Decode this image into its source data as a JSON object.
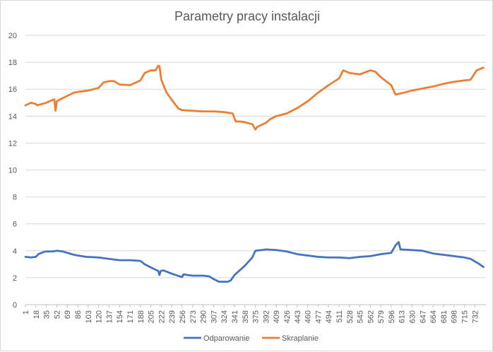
{
  "chart_data": {
    "type": "line",
    "title": "Parametry pracy instalacji",
    "xlabel": "",
    "ylabel": "",
    "ylim": [
      0,
      20
    ],
    "y_ticks": [
      0,
      2,
      4,
      6,
      8,
      10,
      12,
      14,
      16,
      18,
      20
    ],
    "x_ticks": [
      1,
      18,
      35,
      52,
      69,
      86,
      103,
      120,
      137,
      154,
      171,
      188,
      205,
      222,
      239,
      256,
      273,
      290,
      307,
      324,
      341,
      358,
      375,
      392,
      409,
      426,
      443,
      460,
      477,
      494,
      511,
      528,
      545,
      562,
      579,
      596,
      613,
      630,
      647,
      664,
      681,
      698,
      715,
      732
    ],
    "xlim": [
      1,
      750
    ],
    "grid": true,
    "legend_position": "bottom",
    "colors": {
      "Odparowanie": "#4472C4",
      "Skraplanie": "#ED7D31"
    },
    "series": [
      {
        "name": "Odparowanie",
        "points": [
          [
            1,
            3.55
          ],
          [
            10,
            3.5
          ],
          [
            18,
            3.55
          ],
          [
            22,
            3.75
          ],
          [
            30,
            3.9
          ],
          [
            35,
            3.95
          ],
          [
            45,
            3.95
          ],
          [
            52,
            4.0
          ],
          [
            62,
            3.95
          ],
          [
            69,
            3.85
          ],
          [
            80,
            3.7
          ],
          [
            86,
            3.65
          ],
          [
            100,
            3.55
          ],
          [
            120,
            3.5
          ],
          [
            137,
            3.4
          ],
          [
            154,
            3.3
          ],
          [
            171,
            3.3
          ],
          [
            188,
            3.25
          ],
          [
            195,
            3.0
          ],
          [
            210,
            2.65
          ],
          [
            217,
            2.5
          ],
          [
            219,
            2.2
          ],
          [
            221,
            2.5
          ],
          [
            225,
            2.55
          ],
          [
            239,
            2.3
          ],
          [
            252,
            2.1
          ],
          [
            256,
            2.05
          ],
          [
            258,
            2.25
          ],
          [
            265,
            2.2
          ],
          [
            273,
            2.15
          ],
          [
            290,
            2.15
          ],
          [
            300,
            2.1
          ],
          [
            307,
            1.9
          ],
          [
            316,
            1.7
          ],
          [
            330,
            1.7
          ],
          [
            335,
            1.8
          ],
          [
            341,
            2.2
          ],
          [
            358,
            2.9
          ],
          [
            370,
            3.5
          ],
          [
            375,
            4.0
          ],
          [
            385,
            4.05
          ],
          [
            392,
            4.1
          ],
          [
            409,
            4.05
          ],
          [
            426,
            3.95
          ],
          [
            443,
            3.75
          ],
          [
            460,
            3.65
          ],
          [
            477,
            3.55
          ],
          [
            494,
            3.5
          ],
          [
            511,
            3.5
          ],
          [
            528,
            3.45
          ],
          [
            545,
            3.55
          ],
          [
            562,
            3.6
          ],
          [
            579,
            3.75
          ],
          [
            596,
            3.85
          ],
          [
            603,
            4.4
          ],
          [
            608,
            4.65
          ],
          [
            611,
            4.1
          ],
          [
            630,
            4.05
          ],
          [
            647,
            4.0
          ],
          [
            664,
            3.8
          ],
          [
            681,
            3.7
          ],
          [
            698,
            3.6
          ],
          [
            715,
            3.5
          ],
          [
            725,
            3.4
          ],
          [
            738,
            3.05
          ],
          [
            746,
            2.8
          ]
        ]
      },
      {
        "name": "Skraplanie",
        "points": [
          [
            1,
            14.8
          ],
          [
            10,
            15.0
          ],
          [
            18,
            14.9
          ],
          [
            20,
            14.8
          ],
          [
            35,
            15.0
          ],
          [
            45,
            15.2
          ],
          [
            48,
            15.25
          ],
          [
            50,
            14.4
          ],
          [
            52,
            15.1
          ],
          [
            60,
            15.3
          ],
          [
            69,
            15.5
          ],
          [
            80,
            15.75
          ],
          [
            86,
            15.8
          ],
          [
            103,
            15.9
          ],
          [
            120,
            16.1
          ],
          [
            128,
            16.5
          ],
          [
            137,
            16.6
          ],
          [
            145,
            16.6
          ],
          [
            154,
            16.35
          ],
          [
            171,
            16.3
          ],
          [
            188,
            16.65
          ],
          [
            195,
            17.2
          ],
          [
            205,
            17.4
          ],
          [
            213,
            17.4
          ],
          [
            217,
            17.75
          ],
          [
            219,
            17.7
          ],
          [
            222,
            16.7
          ],
          [
            230,
            15.8
          ],
          [
            239,
            15.2
          ],
          [
            250,
            14.55
          ],
          [
            256,
            14.45
          ],
          [
            273,
            14.4
          ],
          [
            290,
            14.35
          ],
          [
            307,
            14.35
          ],
          [
            324,
            14.3
          ],
          [
            338,
            14.2
          ],
          [
            343,
            13.6
          ],
          [
            350,
            13.6
          ],
          [
            358,
            13.55
          ],
          [
            370,
            13.4
          ],
          [
            375,
            13.0
          ],
          [
            378,
            13.2
          ],
          [
            392,
            13.5
          ],
          [
            400,
            13.8
          ],
          [
            409,
            14.0
          ],
          [
            426,
            14.2
          ],
          [
            443,
            14.6
          ],
          [
            460,
            15.1
          ],
          [
            477,
            15.75
          ],
          [
            494,
            16.3
          ],
          [
            511,
            16.8
          ],
          [
            518,
            17.4
          ],
          [
            528,
            17.2
          ],
          [
            545,
            17.1
          ],
          [
            562,
            17.4
          ],
          [
            570,
            17.3
          ],
          [
            579,
            16.9
          ],
          [
            596,
            16.3
          ],
          [
            603,
            15.6
          ],
          [
            613,
            15.7
          ],
          [
            630,
            15.9
          ],
          [
            647,
            16.05
          ],
          [
            664,
            16.2
          ],
          [
            681,
            16.4
          ],
          [
            698,
            16.55
          ],
          [
            715,
            16.65
          ],
          [
            725,
            16.7
          ],
          [
            735,
            17.4
          ],
          [
            746,
            17.6
          ]
        ]
      }
    ]
  }
}
